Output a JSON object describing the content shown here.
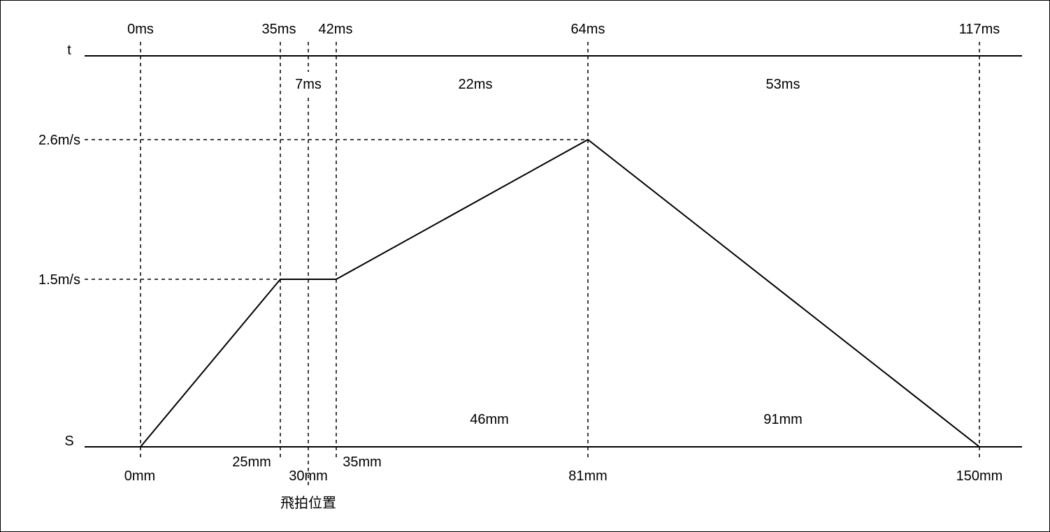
{
  "axes": {
    "t_label": "t",
    "s_label": "S"
  },
  "time_marks": [
    "0ms",
    "35ms",
    "42ms",
    "64ms",
    "117ms"
  ],
  "durations": [
    "7ms",
    "22ms",
    "53ms"
  ],
  "speed_levels": [
    "2.6m/s",
    "1.5m/s"
  ],
  "positions": [
    "0mm",
    "25mm",
    "30mm",
    "35mm",
    "81mm",
    "150mm"
  ],
  "distances": [
    "46mm",
    "91mm"
  ],
  "annotation": "飛拍位置",
  "colors": {
    "line": "#000000",
    "background": "#ffffff"
  }
}
